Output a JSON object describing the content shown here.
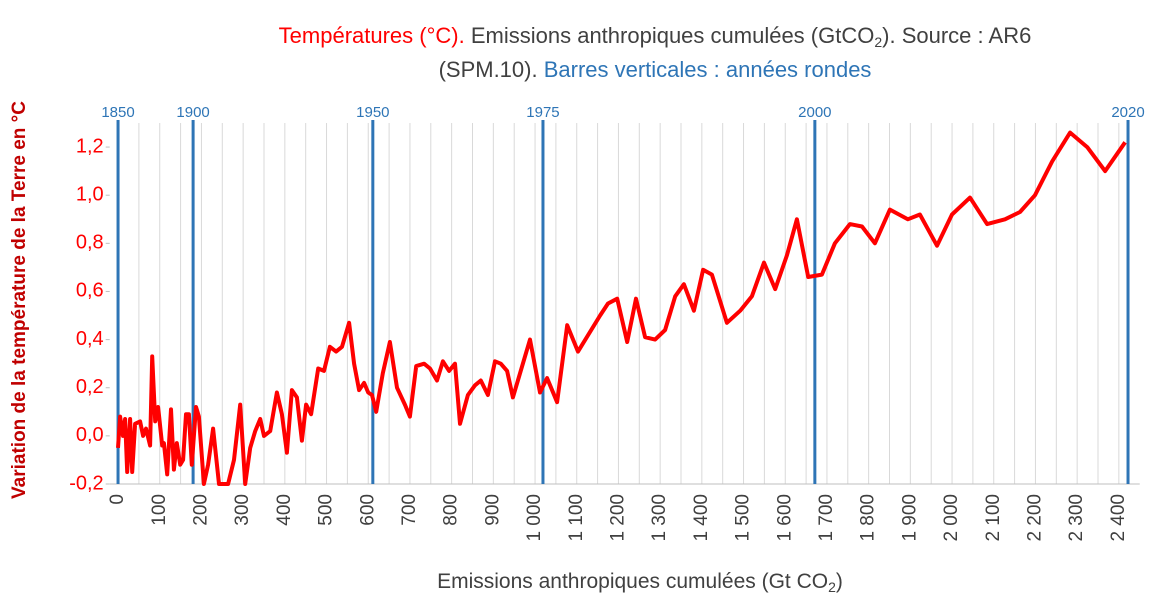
{
  "chart_data": {
    "type": "line",
    "title_lines": [
      [
        "Températures (°C).",
        " Emissions anthropiques cumulées (GtCO",
        "2",
        "). Source : AR6"
      ],
      [
        "(SPM.10).",
        " Barres verticales : années rondes"
      ]
    ],
    "x_label": [
      "Emissions anthropiques cumulées (Gt CO",
      "2",
      ")"
    ],
    "y_label": "Variation de la température de la Terre en °C",
    "xlim": [
      -20,
      2450
    ],
    "ylim": [
      -0.2,
      1.3
    ],
    "xticks": [
      0,
      100,
      200,
      300,
      400,
      500,
      600,
      700,
      800,
      900,
      {
        "value": 1000,
        "label": "1 000"
      },
      {
        "value": 1100,
        "label": "1 100"
      },
      {
        "value": 1200,
        "label": "1 200"
      },
      {
        "value": 1300,
        "label": "1 300"
      },
      {
        "value": 1400,
        "label": "1 400"
      },
      {
        "value": 1500,
        "label": "1 500"
      },
      {
        "value": 1600,
        "label": "1 600"
      },
      {
        "value": 1700,
        "label": "1 700"
      },
      {
        "value": 1800,
        "label": "1 800"
      },
      {
        "value": 1900,
        "label": "1 900"
      },
      {
        "value": 2000,
        "label": "2 000"
      },
      {
        "value": 2100,
        "label": "2 100"
      },
      {
        "value": 2200,
        "label": "2 200"
      },
      {
        "value": 2300,
        "label": "2 300"
      },
      {
        "value": 2400,
        "label": "2 400"
      }
    ],
    "x_minor_grid": [
      50,
      150,
      250,
      350,
      450,
      550,
      650,
      750,
      850,
      950,
      1050,
      1150,
      1250,
      1350,
      1450,
      1550,
      1650,
      1750,
      1850,
      1950,
      2050,
      2150,
      2250,
      2350
    ],
    "yticks": [
      {
        "value": -0.2,
        "label": "-0,2"
      },
      {
        "value": 0,
        "label": "0,0"
      },
      {
        "value": 0.2,
        "label": "0,2"
      },
      {
        "value": 0.4,
        "label": "0,4"
      },
      {
        "value": 0.6,
        "label": "0,6"
      },
      {
        "value": 0.8,
        "label": "0,8"
      },
      {
        "value": 1.0,
        "label": "1,0"
      },
      {
        "value": 1.2,
        "label": "1,2"
      }
    ],
    "year_lines": [
      {
        "label": "1850",
        "x": 0
      },
      {
        "label": "1900",
        "x": 180
      },
      {
        "label": "1950",
        "x": 611
      },
      {
        "label": "1975",
        "x": 1019
      },
      {
        "label": "2000",
        "x": 1671
      },
      {
        "label": "2020",
        "x": 2422
      }
    ],
    "year_color": "#2e75b6",
    "series": [
      {
        "name": "Températures",
        "color": "#ff0000",
        "x": [
          0,
          5,
          12,
          17,
          22,
          29,
          34,
          41,
          53,
          60,
          67,
          77,
          82,
          89,
          96,
          106,
          110,
          118,
          127,
          134,
          141,
          149,
          156,
          163,
          170,
          177,
          187,
          194,
          206,
          216,
          228,
          242,
          264,
          278,
          293,
          305,
          317,
          329,
          341,
          350,
          365,
          381,
          393,
          405,
          417,
          429,
          441,
          451,
          463,
          480,
          494,
          508,
          523,
          537,
          554,
          566,
          578,
          590,
          600,
          609,
          619,
          635,
          652,
          669,
          688,
          700,
          715,
          734,
          748,
          765,
          779,
          794,
          808,
          820,
          839,
          856,
          870,
          887,
          904,
          918,
          933,
          947,
          988,
          1012,
          1029,
          1053,
          1077,
          1103,
          1156,
          1175,
          1197,
          1221,
          1242,
          1264,
          1288,
          1312,
          1336,
          1357,
          1381,
          1403,
          1424,
          1460,
          1492,
          1520,
          1549,
          1576,
          1604,
          1628,
          1655,
          1688,
          1719,
          1755,
          1784,
          1815,
          1851,
          1894,
          1923,
          1964,
          2000,
          2043,
          2084,
          2127,
          2163,
          2199,
          2240,
          2283,
          2324,
          2367,
          2415
        ],
        "values": [
          -0.05,
          0.08,
          0.0,
          0.07,
          -0.15,
          0.07,
          -0.15,
          0.05,
          0.06,
          0.0,
          0.03,
          -0.04,
          0.33,
          0.06,
          0.12,
          -0.04,
          -0.03,
          -0.16,
          0.11,
          -0.14,
          -0.03,
          -0.12,
          -0.1,
          0.09,
          0.09,
          -0.12,
          0.12,
          0.08,
          -0.2,
          -0.12,
          0.03,
          -0.2,
          -0.2,
          -0.1,
          0.13,
          -0.2,
          -0.05,
          0.02,
          0.07,
          0.0,
          0.02,
          0.18,
          0.09,
          -0.07,
          0.19,
          0.16,
          -0.02,
          0.13,
          0.09,
          0.28,
          0.27,
          0.37,
          0.35,
          0.37,
          0.47,
          0.3,
          0.19,
          0.22,
          0.18,
          0.17,
          0.1,
          0.26,
          0.39,
          0.2,
          0.13,
          0.08,
          0.29,
          0.3,
          0.28,
          0.23,
          0.31,
          0.27,
          0.3,
          0.05,
          0.17,
          0.21,
          0.23,
          0.17,
          0.31,
          0.3,
          0.27,
          0.16,
          0.4,
          0.18,
          0.24,
          0.14,
          0.46,
          0.35,
          0.5,
          0.55,
          0.57,
          0.39,
          0.57,
          0.41,
          0.4,
          0.44,
          0.58,
          0.63,
          0.52,
          0.69,
          0.67,
          0.47,
          0.52,
          0.58,
          0.72,
          0.61,
          0.75,
          0.9,
          0.66,
          0.67,
          0.8,
          0.88,
          0.87,
          0.8,
          0.94,
          0.9,
          0.92,
          0.79,
          0.92,
          0.99,
          0.88,
          0.9,
          0.93,
          1.0,
          1.14,
          1.26,
          1.2,
          1.1,
          1.22
        ]
      }
    ]
  }
}
